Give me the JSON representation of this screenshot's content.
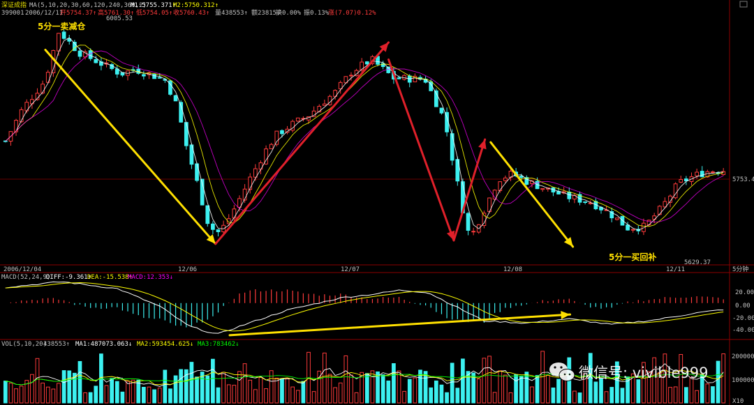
{
  "colors": {
    "up": "#ff3b3b",
    "down": "#3cf0f0",
    "ma1": "#ffffff",
    "ma2": "#ffff00",
    "ma3": "#ff00ff",
    "ma4": "#00ff00",
    "grid": "#8b0000",
    "text": "#c0c0c0",
    "arrow_yellow": "#ffe000",
    "arrow_red": "#e0202a"
  },
  "header": {
    "name": "深证成指",
    "ma_label": "MA(5,10,20,30,60,120,240,360,2)",
    "m1": "M1:5755.371↑",
    "m2": "M2:5750.312↑",
    "row2": {
      "code": "399001",
      "date": "2006/12/11",
      "open": "开5754.37↑",
      "high": "高5761.30↑",
      "low": "低5754.05↑",
      "close": "收5760.43↑",
      "vol": "量438553↑",
      "amount": "额23815↓",
      "turnover": "换0.00%",
      "amplitude": "振0.13%",
      "change": "涨(7.07)0.12%"
    }
  },
  "annotations": {
    "sell": "5分一卖减仓",
    "buy": "5分一买回补"
  },
  "price_labels": {
    "high": "6005.53",
    "low": "5629.37",
    "current": "5753.4"
  },
  "x_axis": {
    "labels": [
      "2006/12/04",
      "12/06",
      "12/07",
      "12/08",
      "12/11"
    ],
    "period": "5分钟"
  },
  "macd": {
    "header": "MACD(52,24,9)",
    "diff": "DIFF:-9.361↑",
    "dea": "DEA:-15.538↑",
    "macd": "MACD:12.353↓",
    "ticks": [
      "20.00",
      "0.00",
      "-20.00",
      "-40.00"
    ]
  },
  "vol": {
    "header": "VOL(5,10,20)",
    "value": "438553↑",
    "ma1": "MA1:487073.063↓",
    "ma2": "MA2:593454.625↓",
    "ma3": "MA3:783462↓",
    "ticks": [
      "200000",
      "100000"
    ],
    "unit": "X10"
  },
  "watermark": "微信号: vivible999",
  "chart_data": {
    "type": "candlestick",
    "ylim": [
      5600,
      6030
    ],
    "vol_ylim": [
      0,
      250000
    ],
    "macd_ylim": [
      -50,
      32
    ],
    "bars": 136,
    "price_keypoints": [
      [
        0,
        5812
      ],
      [
        6,
        5868
      ],
      [
        14,
        5918
      ],
      [
        19,
        6005
      ],
      [
        26,
        5968
      ],
      [
        34,
        5948
      ],
      [
        41,
        5930
      ],
      [
        46,
        5938
      ],
      [
        52,
        5928
      ],
      [
        57,
        5918
      ],
      [
        61,
        5872
      ],
      [
        64,
        5808
      ],
      [
        68,
        5740
      ],
      [
        72,
        5668
      ],
      [
        75,
        5650
      ],
      [
        78,
        5665
      ],
      [
        82,
        5700
      ],
      [
        87,
        5748
      ],
      [
        92,
        5792
      ],
      [
        96,
        5822
      ],
      [
        102,
        5842
      ],
      [
        108,
        5858
      ],
      [
        112,
        5877
      ],
      [
        117,
        5897
      ],
      [
        123,
        5934
      ],
      [
        130,
        5955
      ],
      [
        138,
        5922
      ],
      [
        149,
        5921
      ],
      [
        156,
        5848
      ],
      [
        162,
        5702
      ],
      [
        165,
        5640
      ],
      [
        170,
        5692
      ],
      [
        175,
        5745
      ],
      [
        180,
        5755
      ],
      [
        185,
        5742
      ],
      [
        192,
        5728
      ],
      [
        200,
        5714
      ],
      [
        208,
        5705
      ],
      [
        214,
        5688
      ],
      [
        221,
        5660
      ],
      [
        227,
        5662
      ],
      [
        233,
        5695
      ],
      [
        239,
        5738
      ],
      [
        245,
        5752
      ],
      [
        250,
        5760
      ],
      [
        255,
        5761
      ]
    ],
    "macd_diff_keypoints": [
      [
        0,
        22
      ],
      [
        20,
        30
      ],
      [
        40,
        20
      ],
      [
        55,
        -5
      ],
      [
        65,
        -32
      ],
      [
        75,
        -44
      ],
      [
        85,
        -30
      ],
      [
        100,
        -10
      ],
      [
        120,
        8
      ],
      [
        130,
        12
      ],
      [
        140,
        18
      ],
      [
        150,
        15
      ],
      [
        160,
        -5
      ],
      [
        170,
        -25
      ],
      [
        185,
        -28
      ],
      [
        200,
        -22
      ],
      [
        215,
        -30
      ],
      [
        230,
        -24
      ],
      [
        245,
        -14
      ],
      [
        255,
        -9
      ]
    ],
    "arrows": [
      {
        "color": "yellow",
        "from": [
          15,
          5972
        ],
        "to": [
          75,
          5632
        ]
      },
      {
        "color": "red",
        "from": [
          75,
          5632
        ],
        "to": [
          136,
          5985
        ]
      },
      {
        "color": "red",
        "from": [
          136,
          5955
        ],
        "to": [
          159,
          5638
        ]
      },
      {
        "color": "red",
        "from": [
          159,
          5638
        ],
        "to": [
          170,
          5815
        ]
      },
      {
        "color": "yellow",
        "from": [
          172,
          5810
        ],
        "to": [
          201,
          5627
        ]
      },
      {
        "color": "yellow",
        "from": [
          80,
          -45
        ],
        "to": [
          200,
          -16
        ]
      }
    ]
  }
}
